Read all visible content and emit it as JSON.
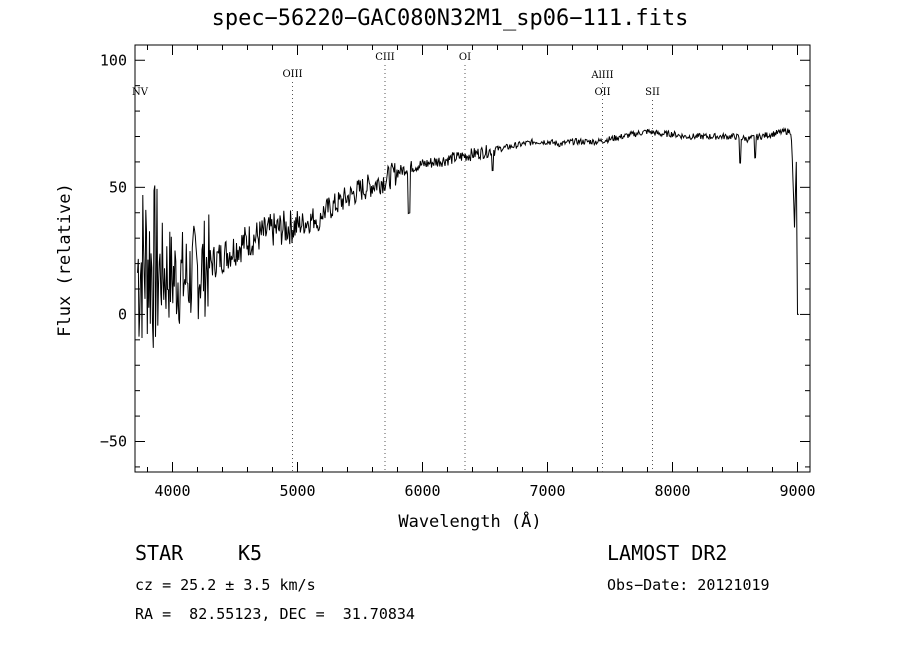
{
  "chart_data": {
    "type": "line",
    "title": "spec−56220−GAC080N32M1_sp06−111.fits",
    "xlabel": "Wavelength (Å)",
    "ylabel": "Flux (relative)",
    "xlim": [
      3700,
      9100
    ],
    "ylim": [
      -62,
      106
    ],
    "xticks": [
      4000,
      5000,
      6000,
      7000,
      8000,
      9000
    ],
    "yticks": [
      -50,
      0,
      50,
      100
    ],
    "ytick_labels": [
      "−50",
      "0",
      "50",
      "100"
    ],
    "grid": false,
    "series": [
      {
        "x": [
          3700,
          3750,
          3800,
          3850,
          3900,
          3950,
          4000,
          4100,
          4200,
          4300,
          4400,
          4500,
          4600,
          4700,
          4800,
          4900,
          5000,
          5100,
          5200,
          5300,
          5400,
          5500,
          5600,
          5700,
          5800,
          5900,
          6000,
          6100,
          6200,
          6300,
          6400,
          6500,
          6600,
          6700,
          6800,
          6900,
          7000,
          7100,
          7200,
          7300,
          7400,
          7500,
          7600,
          7700,
          7800,
          7900,
          8000,
          8100,
          8200,
          8300,
          8400,
          8500,
          8600,
          8700,
          8800,
          8900,
          8950,
          9000
        ],
        "y": [
          15,
          20,
          22,
          18,
          17,
          16,
          15,
          14,
          17,
          20,
          23,
          26,
          29,
          31,
          33,
          34,
          35,
          37,
          40,
          43,
          46,
          49,
          51,
          53,
          56,
          58,
          59,
          60,
          61,
          62,
          63,
          64,
          65,
          66,
          67,
          68,
          68,
          67,
          68,
          68,
          68,
          69,
          70,
          71,
          72,
          71,
          71,
          70,
          70,
          70,
          70,
          70,
          69,
          70,
          71,
          72,
          72,
          0
        ]
      }
    ],
    "line_markers": [
      {
        "label": "NV",
        "x": 3740
      },
      {
        "label": "OIII",
        "x": 4960
      },
      {
        "label": "CIII",
        "x": 5700
      },
      {
        "label": "OI",
        "x": 6340
      },
      {
        "label": "AlIII",
        "x": 7440
      },
      {
        "label": "OII",
        "x": 7440
      },
      {
        "label": "SII",
        "x": 7840
      }
    ]
  },
  "info": {
    "class": "STAR",
    "subclass": "K5",
    "cz": "cz = 25.2 ± 3.5 km/s",
    "radec": "RA =  82.55123, DEC =  31.70834",
    "survey": "LAMOST DR2",
    "obsdate": "Obs−Date: 20121019"
  }
}
